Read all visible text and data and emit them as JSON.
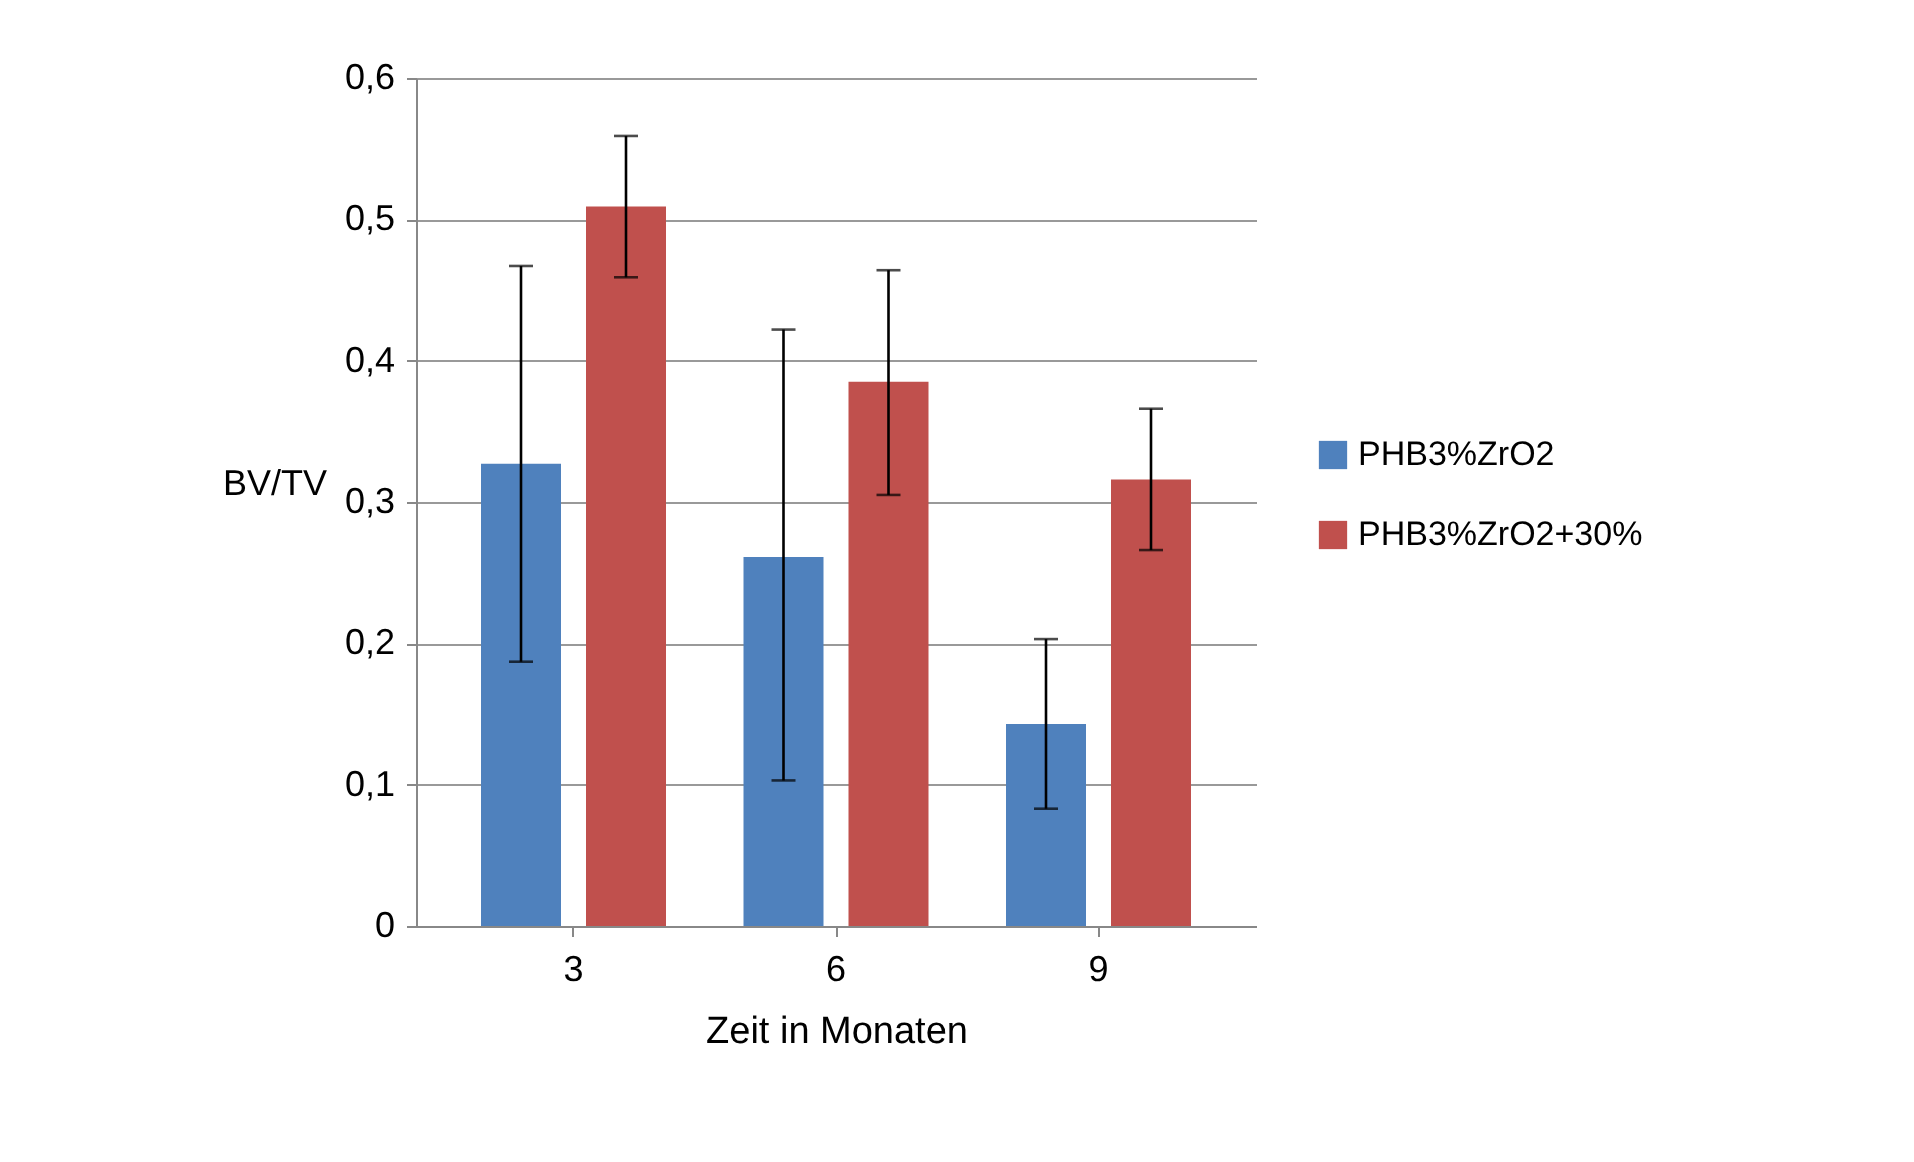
{
  "chart_data": {
    "type": "bar",
    "xlabel": "Zeit in Monaten",
    "ylabel": "BV/TV",
    "categories": [
      "3",
      "6",
      "9"
    ],
    "series": [
      {
        "name": "PHB3%ZrO2",
        "color": "#4f81bd",
        "values": [
          0.327,
          0.261,
          0.143
        ],
        "errors": [
          [
            0.187,
            0.467
          ],
          [
            0.103,
            0.422
          ],
          [
            0.083,
            0.203
          ]
        ]
      },
      {
        "name": "PHB3%ZrO2+30%",
        "color": "#c0504d",
        "values": [
          0.509,
          0.385,
          0.316
        ],
        "errors": [
          [
            0.459,
            0.559
          ],
          [
            0.305,
            0.464
          ],
          [
            0.266,
            0.366
          ]
        ]
      }
    ],
    "ylim": [
      0,
      0.6
    ],
    "yticks": [
      {
        "value": 0,
        "label": "0"
      },
      {
        "value": 0.1,
        "label": "0,1"
      },
      {
        "value": 0.2,
        "label": "0,2"
      },
      {
        "value": 0.3,
        "label": "0,3"
      },
      {
        "value": 0.4,
        "label": "0,4"
      },
      {
        "value": 0.5,
        "label": "0,5"
      },
      {
        "value": 0.6,
        "label": "0,6"
      }
    ],
    "grid": "y",
    "legend": "right"
  }
}
